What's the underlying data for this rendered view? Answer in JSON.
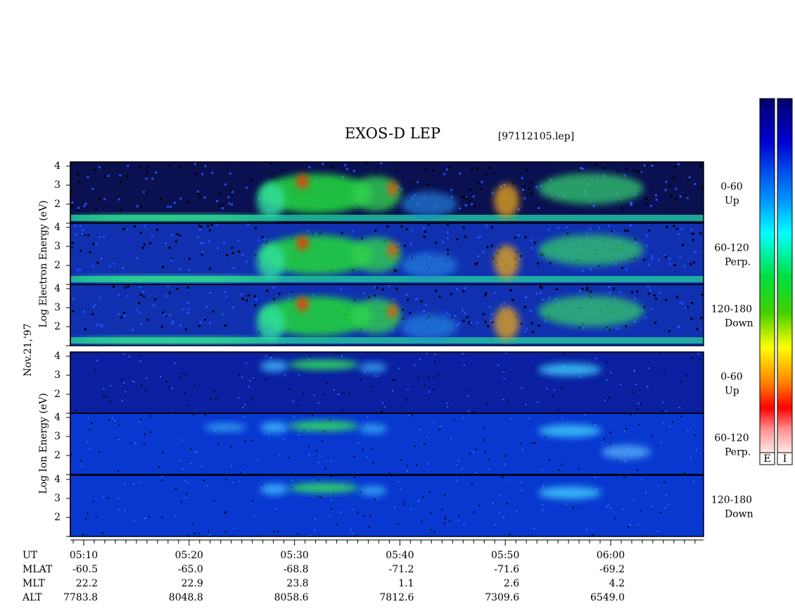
{
  "title": "EXOS-D LEP",
  "file": "[97112105.lep]",
  "date": "Nov.21,'97",
  "electron": {
    "axis_label": "Log Electron Energy (eV)",
    "yticks": [
      "4",
      "3",
      "2"
    ],
    "panels": [
      {
        "angle": "0-60",
        "dir": "Up"
      },
      {
        "angle": "60-120",
        "dir": "Perp."
      },
      {
        "angle": "120-180",
        "dir": "Down"
      }
    ]
  },
  "ion": {
    "axis_label": "Log Ion Energy (eV)",
    "yticks": [
      "4",
      "3",
      "2"
    ],
    "panels": [
      {
        "angle": "0-60",
        "dir": "Up"
      },
      {
        "angle": "60-120",
        "dir": "Perp."
      },
      {
        "angle": "120-180",
        "dir": "Down"
      }
    ]
  },
  "colorbars": [
    "E",
    "I"
  ],
  "ephemeris": [
    {
      "label": "UT",
      "values": [
        "05:10",
        "05:20",
        "05:30",
        "05:40",
        "05:50",
        "06:00"
      ]
    },
    {
      "label": "MLAT",
      "values": [
        "-60.5",
        "-65.0",
        "-68.8",
        "-71.2",
        "-71.6",
        "-69.2"
      ]
    },
    {
      "label": "MLT",
      "values": [
        "22.2",
        "22.9",
        "23.8",
        "1.1",
        "2.6",
        "4.2"
      ]
    },
    {
      "label": "ALT",
      "values": [
        "7783.8",
        "8048.8",
        "8058.6",
        "7812.6",
        "7309.6",
        "6549.0"
      ]
    }
  ]
}
